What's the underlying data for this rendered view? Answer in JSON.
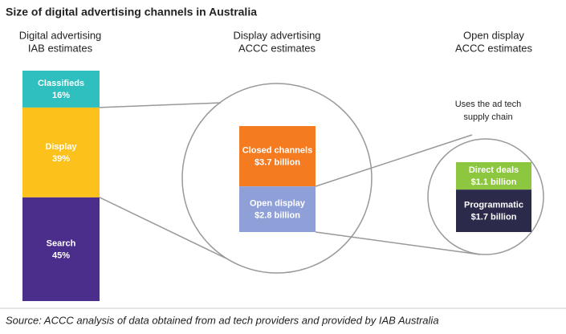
{
  "title": "Size of digital advertising channels in Australia",
  "source": "Source: ACCC analysis of data obtained from ad tech providers and provided by IAB Australia",
  "annotation": [
    "Uses the ad tech",
    "supply chain"
  ],
  "chart_data": [
    {
      "type": "stacked-bar",
      "title": "Digital advertising",
      "subtitle": "IAB estimates",
      "categories": [
        "Classifieds",
        "Display",
        "Search"
      ],
      "values": [
        16,
        39,
        45
      ],
      "value_labels": [
        "16%",
        "39%",
        "45%"
      ],
      "colors": [
        "#2fbfbf",
        "#fdc11c",
        "#4b2e8c"
      ]
    },
    {
      "type": "stacked-bar",
      "title": "Display advertising",
      "subtitle": "ACCC estimates",
      "categories": [
        "Closed channels",
        "Open display"
      ],
      "values": [
        3.7,
        2.8
      ],
      "value_labels": [
        "$3.7 billion",
        "$2.8 billion"
      ],
      "colors": [
        "#f47b20",
        "#8fa0d8"
      ]
    },
    {
      "type": "stacked-bar",
      "title": "Open display",
      "subtitle": "ACCC estimates",
      "categories": [
        "Direct deals",
        "Programmatic"
      ],
      "values": [
        1.1,
        1.7
      ],
      "value_labels": [
        "$1.1 billion",
        "$1.7 billion"
      ],
      "colors": [
        "#8dc63f",
        "#2b2a4a"
      ]
    }
  ]
}
